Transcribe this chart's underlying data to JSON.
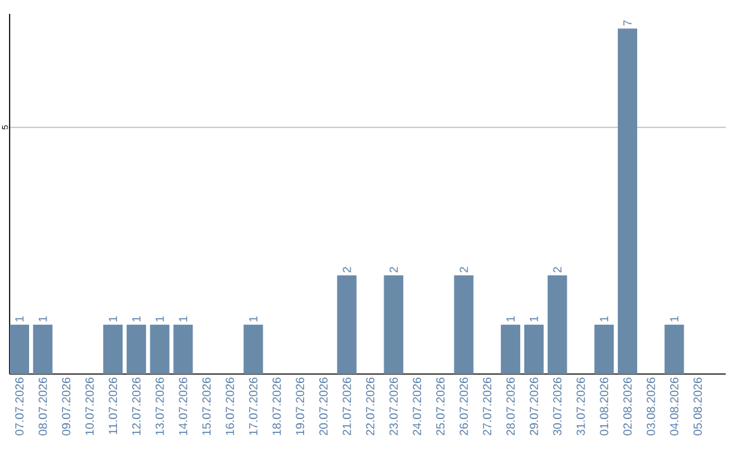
{
  "chart_data": {
    "type": "bar",
    "categories": [
      "07.07.2026",
      "08.07.2026",
      "09.07.2026",
      "10.07.2026",
      "11.07.2026",
      "12.07.2026",
      "13.07.2026",
      "14.07.2026",
      "15.07.2026",
      "16.07.2026",
      "17.07.2026",
      "18.07.2026",
      "19.07.2026",
      "20.07.2026",
      "21.07.2026",
      "22.07.2026",
      "23.07.2026",
      "24.07.2026",
      "25.07.2026",
      "26.07.2026",
      "27.07.2026",
      "28.07.2026",
      "29.07.2026",
      "30.07.2026",
      "31.07.2026",
      "01.08.2026",
      "02.08.2026",
      "03.08.2026",
      "04.08.2026",
      "05.08.2026"
    ],
    "values": [
      1,
      1,
      0,
      0,
      1,
      1,
      1,
      1,
      0,
      0,
      1,
      0,
      0,
      0,
      2,
      0,
      2,
      0,
      0,
      2,
      0,
      1,
      1,
      2,
      0,
      1,
      7,
      0,
      1,
      0
    ],
    "value_labels": [
      "1",
      "1",
      null,
      null,
      "1",
      "1",
      "1",
      "1",
      null,
      null,
      "1",
      null,
      null,
      null,
      "2",
      null,
      "2",
      null,
      null,
      "2",
      null,
      "1",
      "1",
      "2",
      null,
      "1",
      "7",
      null,
      "1",
      null
    ],
    "color": "#6a8aaa",
    "ylim": [
      0,
      7.3
    ],
    "yticks": [
      5
    ],
    "grid": "y"
  }
}
